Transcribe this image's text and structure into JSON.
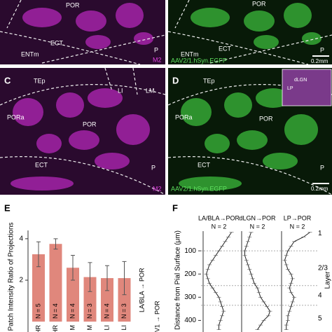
{
  "images": [
    {
      "labels": [
        "POR",
        "ECT",
        "ENTm",
        "P",
        "M2"
      ]
    },
    {
      "labels": [
        "POR",
        "ECT",
        "ENTm",
        "P",
        "AAV2/1.hSyn.EGFP",
        "0.2mm"
      ]
    },
    {
      "labels": [
        "C",
        "TEp",
        "LI",
        "LM",
        "PORa",
        "POR",
        "ECT",
        "P",
        "M2"
      ]
    },
    {
      "labels": [
        "D",
        "TEp",
        "PORa",
        "POR",
        "ECT",
        "P",
        "AAV2/1.hSyn.EGFP",
        "0.2mm",
        "dLGN",
        "LP"
      ]
    }
  ],
  "chart_data": [
    {
      "type": "bar",
      "panel": "E",
      "ylabel": "Patch Intensity Ratio of Projections",
      "categories": [
        "HR",
        "HR",
        "M",
        "M",
        "LI",
        "LI"
      ],
      "values": [
        3.25,
        3.75,
        2.6,
        2.15,
        2.1,
        2.1
      ],
      "errors": [
        0.6,
        0.25,
        0.6,
        0.7,
        0.6,
        0.8
      ],
      "value_labels": [
        "N = 5",
        "N = 4",
        "N = 4",
        "N = 3",
        "N = 4",
        "N = 3"
      ],
      "annotations": [
        "LA/BLA → POR",
        "V1 → POR"
      ],
      "color": "#e0877c",
      "ylim": [
        -0.5,
        4.4
      ],
      "yticks": [
        2,
        4
      ]
    },
    {
      "type": "profile",
      "panel": "F",
      "ylabel": "Distance from Pial Surface (μm)",
      "x": [
        20,
        40,
        60,
        80,
        100,
        120,
        140,
        160,
        180,
        200,
        220,
        240,
        260,
        280,
        300,
        320,
        340,
        360,
        380,
        400,
        420,
        440
      ],
      "series": [
        {
          "name": "LA/BLA→POR",
          "subtitle": "N = 2",
          "color": "#222222",
          "values": [
            0.9,
            0.8,
            0.7,
            0.6,
            0.5,
            0.4,
            0.3,
            0.2,
            0.15,
            0.1,
            0.15,
            0.2,
            0.3,
            0.4,
            0.5,
            0.55,
            0.6,
            0.65,
            0.6,
            0.55,
            0.5,
            0.5
          ]
        },
        {
          "name": "dLGN→POR",
          "subtitle": "N = 2",
          "color": "#222222",
          "values": [
            0.3,
            0.25,
            0.2,
            0.15,
            0.1,
            0.1,
            0.15,
            0.2,
            0.25,
            0.3,
            0.35,
            0.4,
            0.5,
            0.55,
            0.6,
            0.7,
            0.8,
            0.9,
            0.85,
            0.7,
            0.6,
            0.5
          ]
        },
        {
          "name": "LP→POR",
          "subtitle": "N = 2",
          "color": "#222222",
          "values": [
            0.9,
            0.7,
            0.4,
            0.3,
            0.2,
            0.15,
            0.1,
            0.15,
            0.2,
            0.3,
            0.35,
            0.3,
            0.25,
            0.3,
            0.4,
            0.35,
            0.3,
            0.25,
            0.2,
            0.2,
            0.15,
            0.15
          ]
        }
      ],
      "layer_boundaries": [
        100,
        250,
        335
      ],
      "layers": [
        "1",
        "2/3",
        "4",
        "5"
      ],
      "layer_title": "Layer",
      "ylim": [
        0,
        450
      ],
      "yticks": [
        100,
        200,
        300,
        400
      ]
    }
  ]
}
